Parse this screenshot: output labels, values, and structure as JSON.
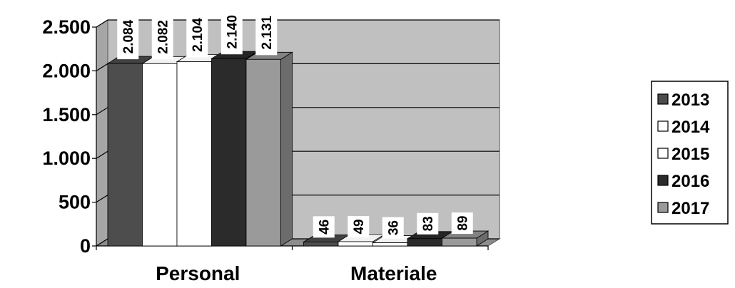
{
  "chart_data": {
    "type": "bar",
    "style": "3d-clustered-column",
    "categories": [
      "Personal",
      "Materiale"
    ],
    "series": [
      {
        "name": "2013",
        "values": [
          2084,
          46
        ],
        "labels": [
          "2.084",
          "46"
        ],
        "color": "#4d4d4d"
      },
      {
        "name": "2014",
        "values": [
          2082,
          49
        ],
        "labels": [
          "2.082",
          "49"
        ],
        "color": "#ffffff"
      },
      {
        "name": "2015",
        "values": [
          2104,
          36
        ],
        "labels": [
          "2.104",
          "36"
        ],
        "color": "#ffffff"
      },
      {
        "name": "2016",
        "values": [
          2140,
          83
        ],
        "labels": [
          "2.140",
          "83"
        ],
        "color": "#2b2b2b"
      },
      {
        "name": "2017",
        "values": [
          2131,
          89
        ],
        "labels": [
          "2.131",
          "89"
        ],
        "color": "#9a9a9a"
      }
    ],
    "y_ticks": [
      {
        "value": 0,
        "label": "0"
      },
      {
        "value": 500,
        "label": "500"
      },
      {
        "value": 1000,
        "label": "1.000"
      },
      {
        "value": 1500,
        "label": "1.500"
      },
      {
        "value": 2000,
        "label": "2.000"
      },
      {
        "value": 2500,
        "label": "2.500"
      }
    ],
    "ylim": [
      0,
      2500
    ],
    "grid": true,
    "legend_position": "right",
    "title": "",
    "xlabel": "",
    "ylabel": "",
    "colors": {
      "wall": "#c0c0c0",
      "side_wall": "#a6a6a6",
      "floor": "#8c8c8c",
      "grid": "#000000"
    }
  }
}
